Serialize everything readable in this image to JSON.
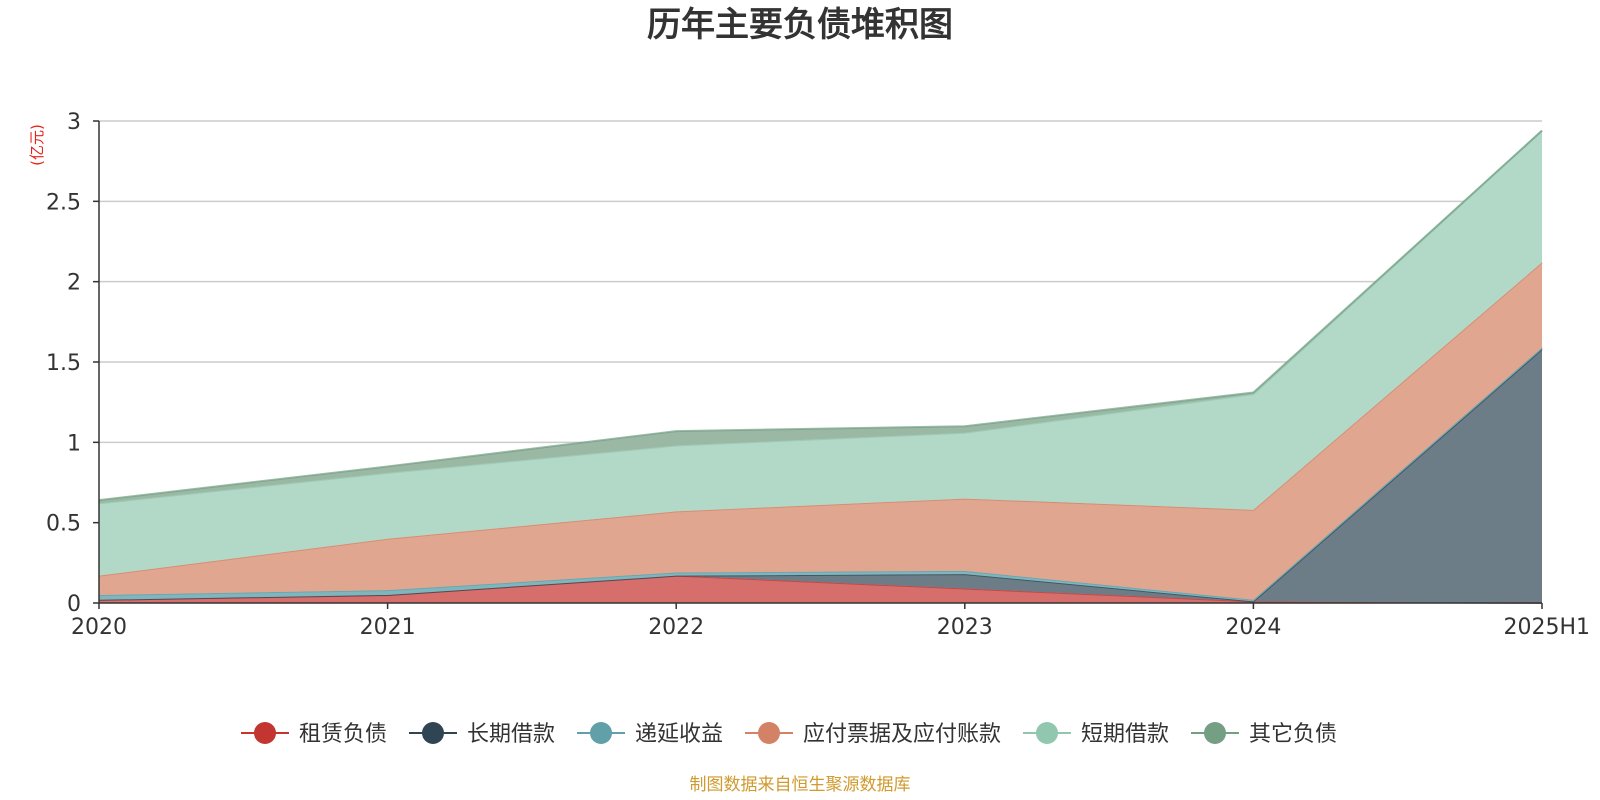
{
  "chart_data": {
    "type": "area",
    "stacked": true,
    "title": "历年主要负债堆积图",
    "unit_label": "(亿元)",
    "source_note": "制图数据来自恒生聚源数据库",
    "categories": [
      "2020",
      "2021",
      "2022",
      "2023",
      "2024",
      "2025H1"
    ],
    "ylim": [
      0,
      3
    ],
    "yticks": [
      0,
      0.5,
      1,
      1.5,
      2,
      2.5,
      3
    ],
    "ytick_labels": [
      "0",
      "0.5",
      "1",
      "1.5",
      "2",
      "2.5",
      "3"
    ],
    "grid": true,
    "legend_position": "bottom",
    "series": [
      {
        "name": "租赁负债",
        "color": "#c23531",
        "fill": "#d66e6c",
        "values": [
          0.02,
          0.05,
          0.17,
          0.09,
          0.01,
          0.0
        ]
      },
      {
        "name": "长期借款",
        "color": "#2f4554",
        "fill": "#6d7d88",
        "values": [
          0.0,
          0.0,
          0.0,
          0.09,
          0.0,
          1.58
        ]
      },
      {
        "name": "递延收益",
        "color": "#61a0a8",
        "fill": "#7fb6bd",
        "values": [
          0.03,
          0.03,
          0.02,
          0.02,
          0.01,
          0.01
        ]
      },
      {
        "name": "应付票据及应付账款",
        "color": "#d48265",
        "fill": "#e0a690",
        "values": [
          0.12,
          0.32,
          0.38,
          0.45,
          0.56,
          0.53
        ]
      },
      {
        "name": "短期借款",
        "color": "#91c7ae",
        "fill": "#b2d8c7",
        "values": [
          0.45,
          0.41,
          0.41,
          0.41,
          0.72,
          0.82
        ]
      },
      {
        "name": "其它负债",
        "color": "#749f83",
        "fill": "#9bb8a4",
        "values": [
          0.02,
          0.04,
          0.09,
          0.04,
          0.01,
          0.0
        ]
      }
    ]
  }
}
